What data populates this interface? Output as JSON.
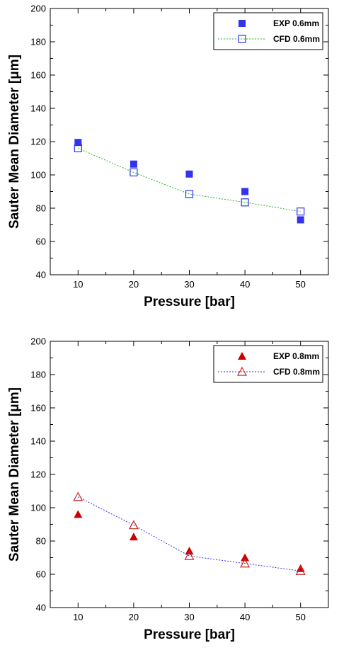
{
  "chart_data": [
    {
      "type": "scatter",
      "xlabel": "Pressure [bar]",
      "ylabel": "Sauter Mean Diameter [μm]",
      "xlim": [
        5,
        55
      ],
      "ylim": [
        40,
        200
      ],
      "xticks": [
        10,
        20,
        30,
        40,
        50
      ],
      "yticks": [
        40,
        60,
        80,
        100,
        120,
        140,
        160,
        180,
        200
      ],
      "grid": false,
      "legend_position": "top-right",
      "series": [
        {
          "name": "EXP 0.6mm",
          "marker": "filled-square",
          "line": false,
          "color": "#3333ee",
          "x": [
            10,
            20,
            30,
            40,
            50
          ],
          "y": [
            119.5,
            106.5,
            100.5,
            90,
            73
          ]
        },
        {
          "name": "CFD 0.6mm",
          "marker": "open-square",
          "line": true,
          "line_style": "dotted",
          "color": "#3333ee",
          "line_color": "#22bb22",
          "x": [
            10,
            20,
            30,
            40,
            50
          ],
          "y": [
            116,
            101.5,
            88.5,
            83.5,
            78
          ]
        }
      ]
    },
    {
      "type": "scatter",
      "xlabel": "Pressure [bar]",
      "ylabel": "Sauter Mean Diameter [μm]",
      "xlim": [
        5,
        55
      ],
      "ylim": [
        40,
        200
      ],
      "xticks": [
        10,
        20,
        30,
        40,
        50
      ],
      "yticks": [
        40,
        60,
        80,
        100,
        120,
        140,
        160,
        180,
        200
      ],
      "grid": false,
      "legend_position": "top-right",
      "series": [
        {
          "name": "EXP 0.8mm",
          "marker": "filled-triangle",
          "line": false,
          "color": "#cc0000",
          "x": [
            10,
            20,
            30,
            40,
            50
          ],
          "y": [
            96,
            82.5,
            74,
            70,
            63.5
          ]
        },
        {
          "name": "CFD 0.8mm",
          "marker": "open-triangle",
          "line": true,
          "line_style": "dotted",
          "color": "#cc2222",
          "line_color": "#3333ee",
          "x": [
            10,
            20,
            30,
            40,
            50
          ],
          "y": [
            106.5,
            89.5,
            71,
            66.5,
            62
          ]
        }
      ]
    }
  ]
}
